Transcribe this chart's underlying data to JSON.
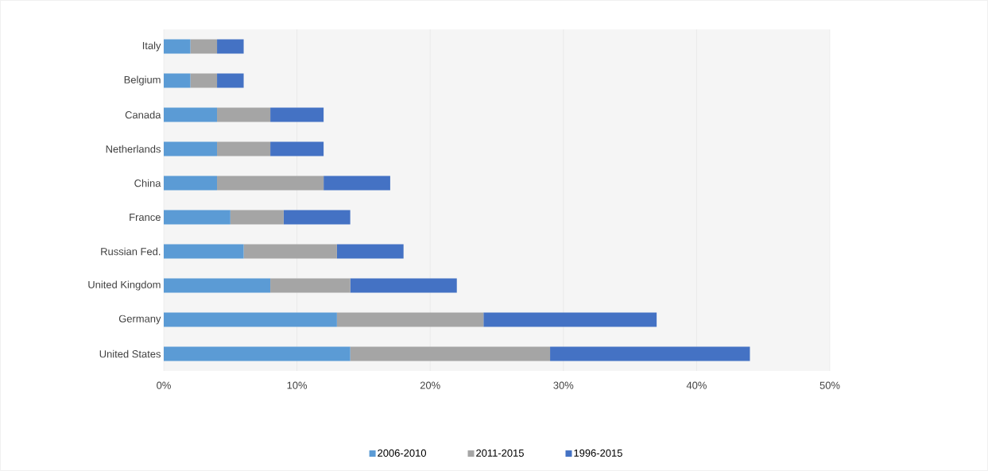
{
  "chart_data": {
    "type": "bar",
    "orientation": "horizontal",
    "stacked": true,
    "categories": [
      "Italy",
      "Belgium",
      "Canada",
      "Netherlands",
      "China",
      "France",
      "Russian Fed.",
      "United Kingdom",
      "Germany",
      "United States"
    ],
    "series": [
      {
        "name": "2006-2010",
        "color": "#5b9bd5",
        "values": [
          2,
          2,
          4,
          4,
          4,
          5,
          6,
          8,
          13,
          14
        ]
      },
      {
        "name": "2011-2015",
        "color": "#a5a5a5",
        "values": [
          2,
          2,
          4,
          4,
          8,
          4,
          7,
          6,
          11,
          15
        ]
      },
      {
        "name": "1996-2015",
        "color": "#4472c4",
        "values": [
          2,
          2,
          4,
          4,
          5,
          5,
          5,
          8,
          13,
          15
        ]
      }
    ],
    "xlim": [
      0,
      50
    ],
    "xticks": [
      {
        "value": 0,
        "label": "0%"
      },
      {
        "value": 10,
        "label": "10%"
      },
      {
        "value": 20,
        "label": "20%"
      },
      {
        "value": 30,
        "label": "30%"
      },
      {
        "value": 40,
        "label": "40%"
      },
      {
        "value": 50,
        "label": "50%"
      }
    ],
    "grid": "x",
    "legend": "bottom"
  }
}
